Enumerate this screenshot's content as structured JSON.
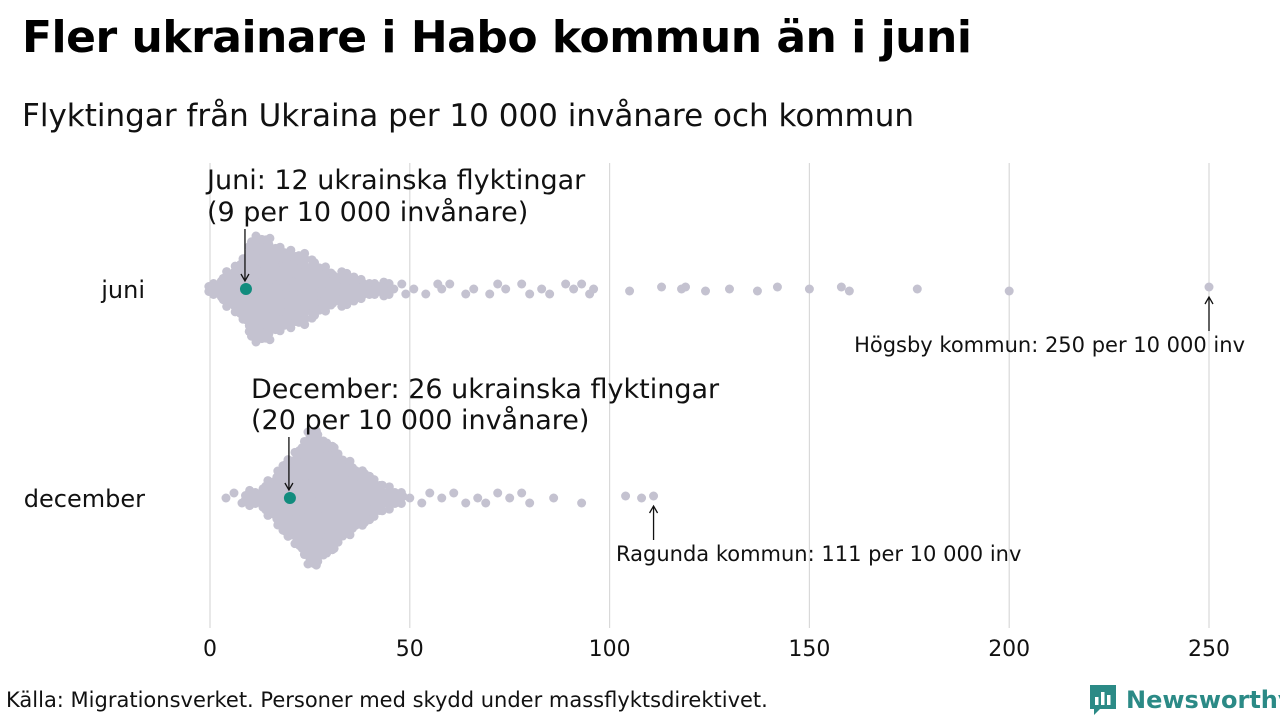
{
  "title": "Fler ukrainare i Habo kommun än i juni",
  "subtitle": "Flyktingar från Ukraina per 10 000 invånare och kommun",
  "source": "Källa: Migrationsverket. Personer med skydd under massflyktsdirektivet.",
  "brand": {
    "name": "Newsworthy",
    "color": "#2b8a86",
    "icon": "bar-chart-logo-icon"
  },
  "colors": {
    "dot": "#c4c2d0",
    "highlight": "#128c7e",
    "grid": "#d9d9d9"
  },
  "chart_data": {
    "type": "scatter",
    "subtype": "beeswarm",
    "xlim": [
      0,
      250
    ],
    "x_ticks": [
      "0",
      "50",
      "100",
      "150",
      "200",
      "250"
    ],
    "grid": true,
    "rows": [
      {
        "label": "juni",
        "highlight": {
          "value": 9,
          "line1": "Juni: 12 ukrainska flyktingar",
          "line2": "(9 per 10 000 invånare)"
        },
        "extreme": {
          "value": 250,
          "label": "Högsby kommun: 250 per 10 000 inv"
        },
        "outliers": [
          46,
          48,
          49,
          51,
          54,
          57,
          58,
          60,
          64,
          66,
          70,
          72,
          74,
          78,
          80,
          83,
          85,
          89,
          91,
          93,
          95,
          96,
          105,
          113,
          118,
          119,
          124,
          130,
          137,
          142,
          150,
          158,
          160,
          177,
          200,
          250
        ]
      },
      {
        "label": "december",
        "highlight": {
          "value": 20,
          "line1": "December: 26 ukrainska flyktingar",
          "line2": "(20 per 10 000 invånare)"
        },
        "extreme": {
          "value": 111,
          "label": "Ragunda kommun: 111 per 10 000 inv"
        },
        "outliers": [
          4,
          6,
          8,
          50,
          53,
          55,
          58,
          61,
          64,
          67,
          69,
          72,
          75,
          78,
          80,
          86,
          93,
          104,
          108,
          111
        ]
      }
    ]
  }
}
